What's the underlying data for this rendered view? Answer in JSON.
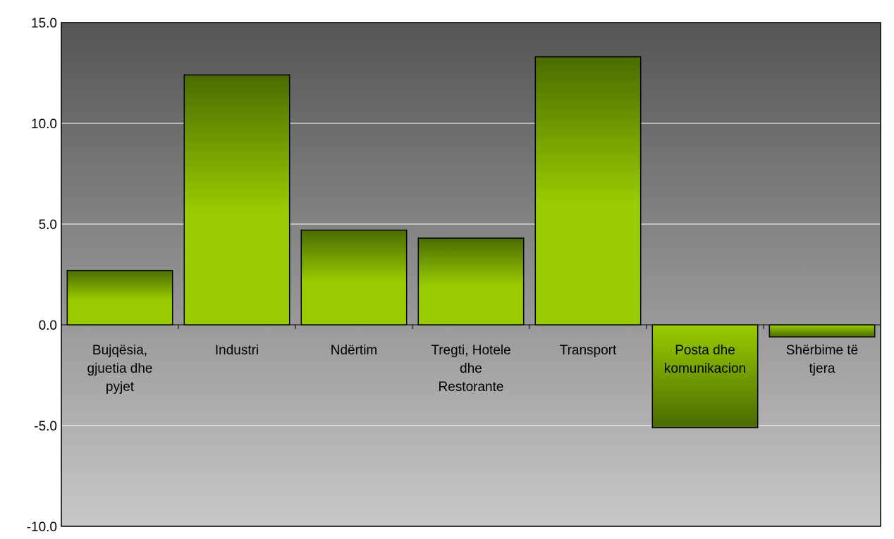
{
  "chart_data": {
    "type": "bar",
    "title": "",
    "xlabel": "",
    "ylabel": "",
    "ylim": [
      -10,
      15
    ],
    "yticks": [
      "15.0",
      "10.0",
      "5.0",
      "0.0",
      "-5.0",
      "-10.0"
    ],
    "categories": [
      [
        "Bujqësia,",
        "gjuetia dhe",
        "pyjet"
      ],
      [
        "Industri"
      ],
      [
        "Ndërtim"
      ],
      [
        "Tregti, Hotele",
        "dhe",
        "Restorante"
      ],
      [
        "Transport"
      ],
      [
        "Posta dhe",
        "komunikacion"
      ],
      [
        "Shërbime të",
        "tjera"
      ]
    ],
    "values": [
      2.7,
      12.4,
      4.7,
      4.3,
      13.3,
      -5.1,
      -0.6
    ],
    "grid": true,
    "legend": "none",
    "colors": {
      "plot_top": "#555555",
      "plot_bottom": "#c8c8c8",
      "bar_dark": "#4a6b00",
      "bar_light": "#99cc00",
      "gridline": "#ffffff",
      "border": "#000000"
    }
  }
}
